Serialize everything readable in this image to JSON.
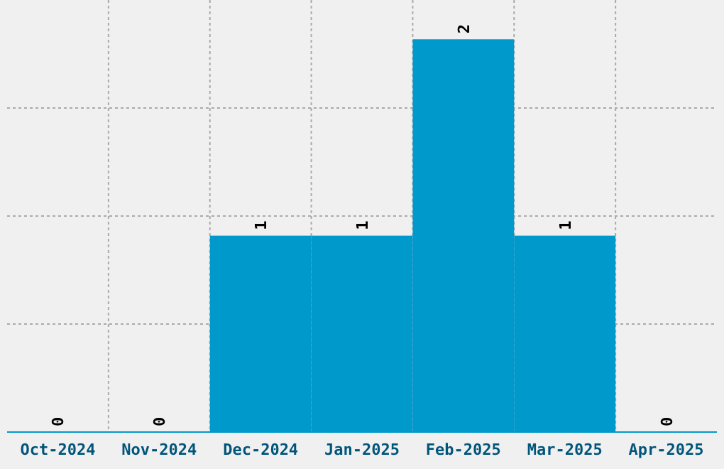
{
  "chart_data": {
    "type": "bar",
    "categories": [
      "Oct-2024",
      "Nov-2024",
      "Dec-2024",
      "Jan-2025",
      "Feb-2025",
      "Mar-2025",
      "Apr-2025"
    ],
    "values": [
      0,
      0,
      1,
      1,
      2,
      1,
      0
    ],
    "color": "#0099cc",
    "ylim": [
      0,
      2.2
    ],
    "yticks": [
      {
        "value": 0.55,
        "label": null
      },
      {
        "value": 1.1,
        "label": null
      },
      {
        "value": 1.65,
        "label": null
      }
    ],
    "tick_labels": "x",
    "grid": true,
    "data_labels": true
  }
}
